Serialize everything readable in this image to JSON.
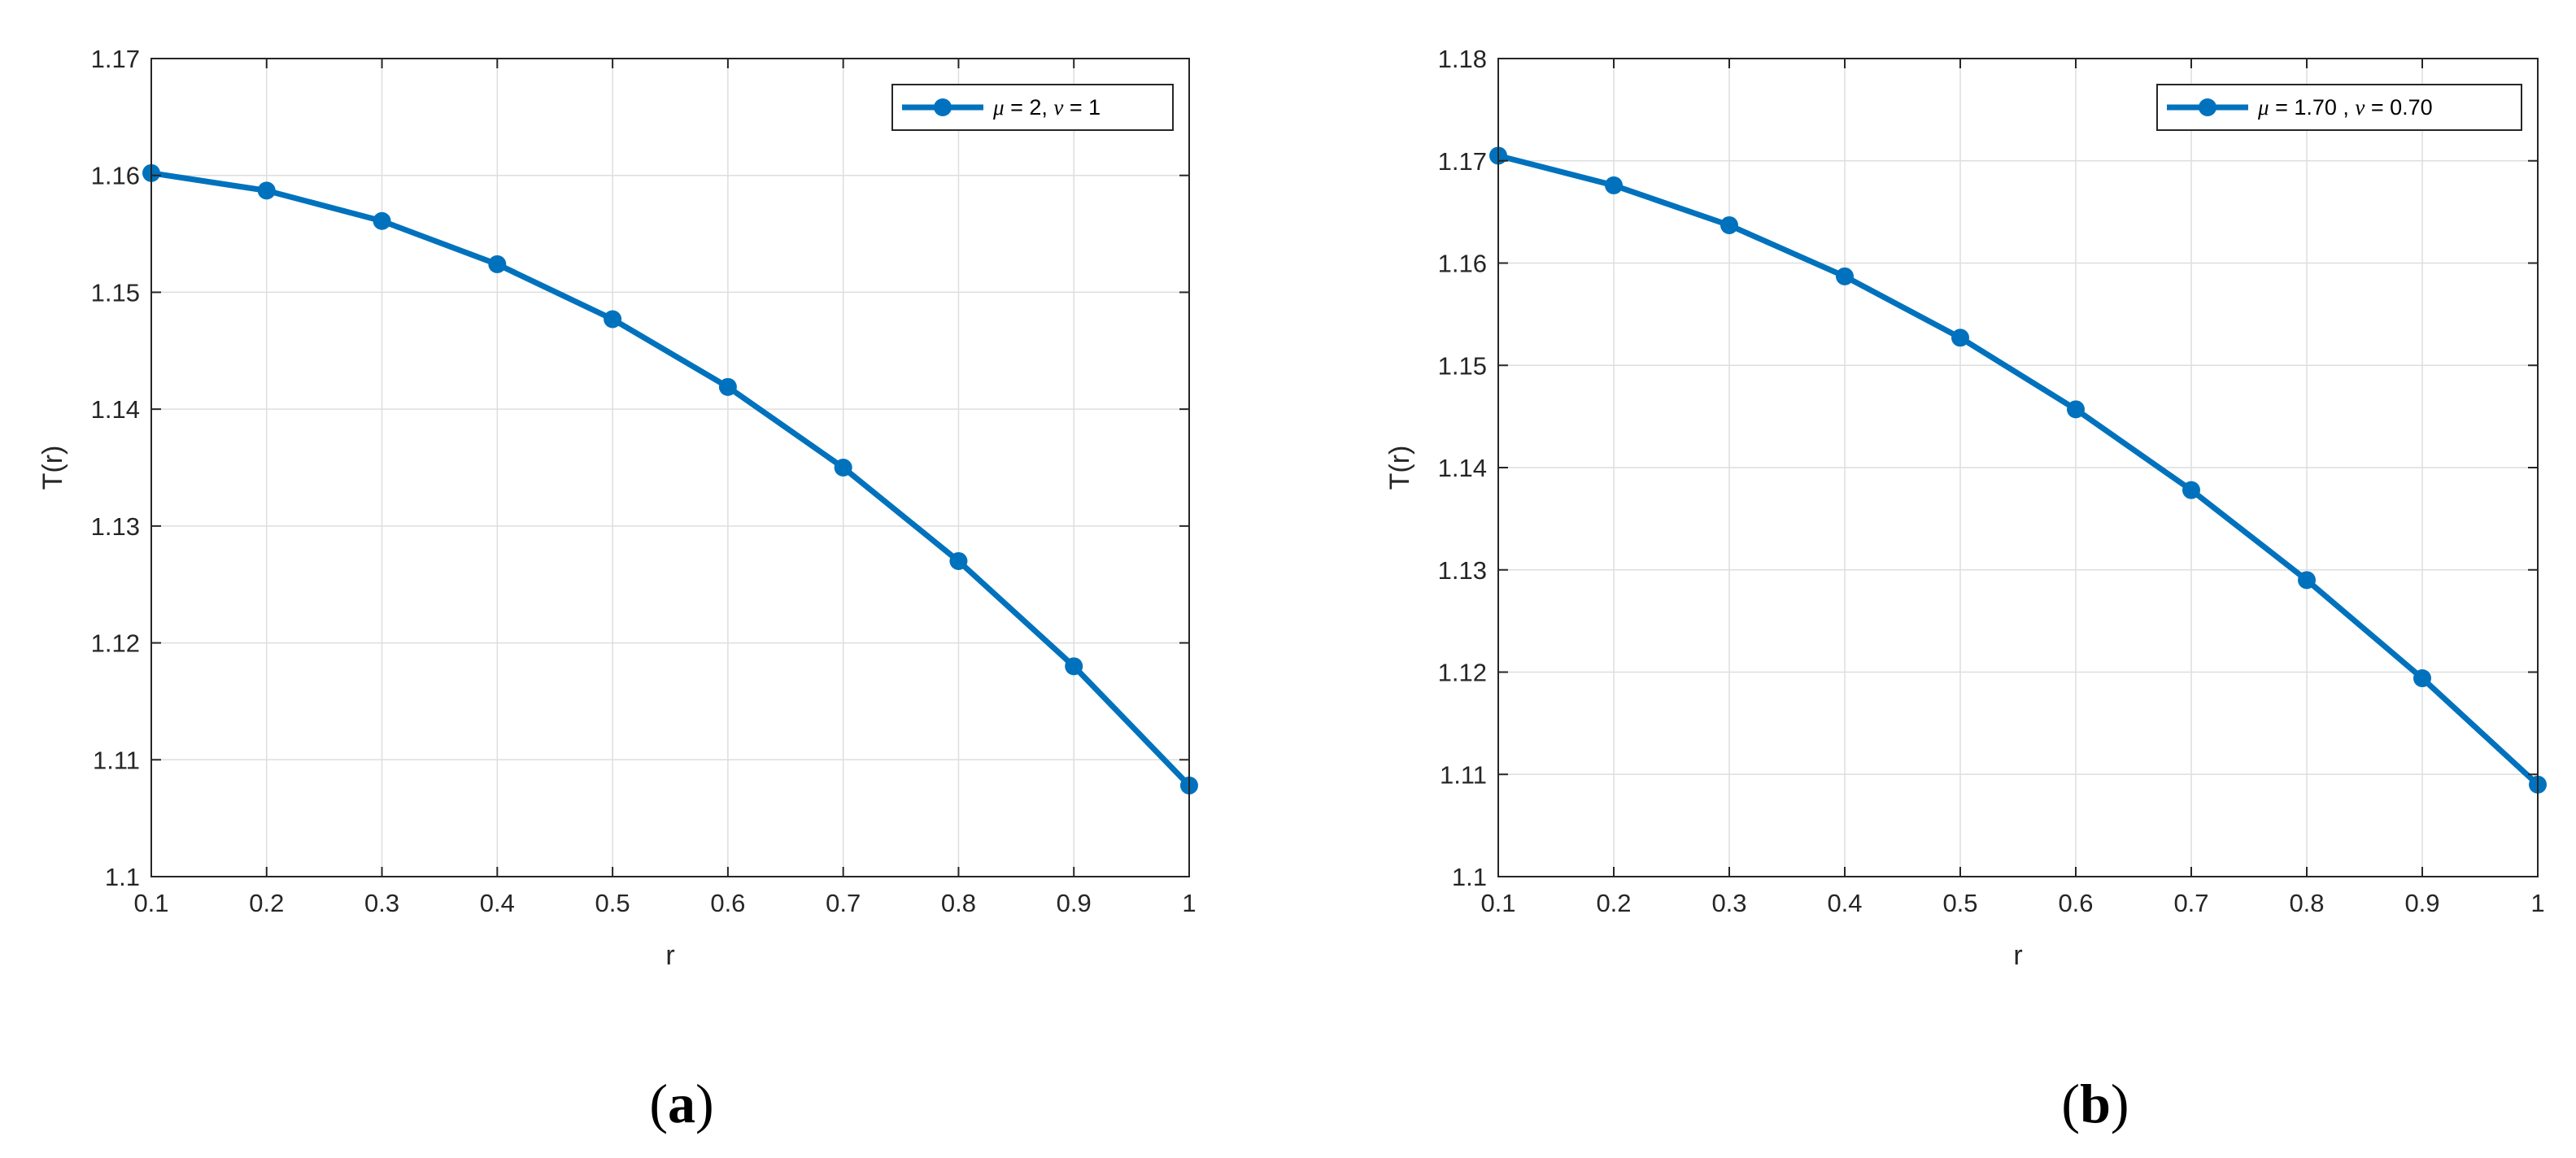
{
  "chart_data": [
    {
      "type": "line",
      "caption": "a",
      "xlabel": "r",
      "ylabel": "T(r)",
      "xlim": [
        0.1,
        1
      ],
      "ylim": [
        1.1,
        1.17
      ],
      "xticks": [
        "0.1",
        "0.2",
        "0.3",
        "0.4",
        "0.5",
        "0.6",
        "0.7",
        "0.8",
        "0.9",
        "1"
      ],
      "yticks": [
        "1.1",
        "1.11",
        "1.12",
        "1.13",
        "1.14",
        "1.15",
        "1.16",
        "1.17"
      ],
      "grid": true,
      "legend_position": "top-right",
      "series": [
        {
          "name": "μ = 2, ν = 1",
          "legend_parts": {
            "mu_symbol": "μ",
            "mu_value": " = 2, ",
            "nu_symbol": "ν",
            "nu_value": " = 1"
          },
          "color": "#0072BD",
          "x": [
            0.1,
            0.2,
            0.3,
            0.4,
            0.5,
            0.6,
            0.7,
            0.8,
            0.9,
            1.0
          ],
          "y": [
            1.1602,
            1.1587,
            1.1561,
            1.1524,
            1.1477,
            1.1419,
            1.135,
            1.127,
            1.118,
            1.1078
          ]
        }
      ]
    },
    {
      "type": "line",
      "caption": "b",
      "xlabel": "r",
      "ylabel": "T(r)",
      "xlim": [
        0.1,
        1
      ],
      "ylim": [
        1.1,
        1.18
      ],
      "xticks": [
        "0.1",
        "0.2",
        "0.3",
        "0.4",
        "0.5",
        "0.6",
        "0.7",
        "0.8",
        "0.9",
        "1"
      ],
      "yticks": [
        "1.1",
        "1.11",
        "1.12",
        "1.13",
        "1.14",
        "1.15",
        "1.16",
        "1.17",
        "1.18"
      ],
      "grid": true,
      "legend_position": "top-right",
      "series": [
        {
          "name": "μ = 1.70 , ν = 0.70",
          "legend_parts": {
            "mu_symbol": "μ",
            "mu_value": " = 1.70 , ",
            "nu_symbol": "ν",
            "nu_value": " = 0.70"
          },
          "color": "#0072BD",
          "x": [
            0.1,
            0.2,
            0.3,
            0.4,
            0.5,
            0.6,
            0.7,
            0.8,
            0.9,
            1.0
          ],
          "y": [
            1.1705,
            1.1676,
            1.1637,
            1.1587,
            1.1527,
            1.1457,
            1.1378,
            1.129,
            1.1194,
            1.109
          ]
        }
      ]
    }
  ]
}
